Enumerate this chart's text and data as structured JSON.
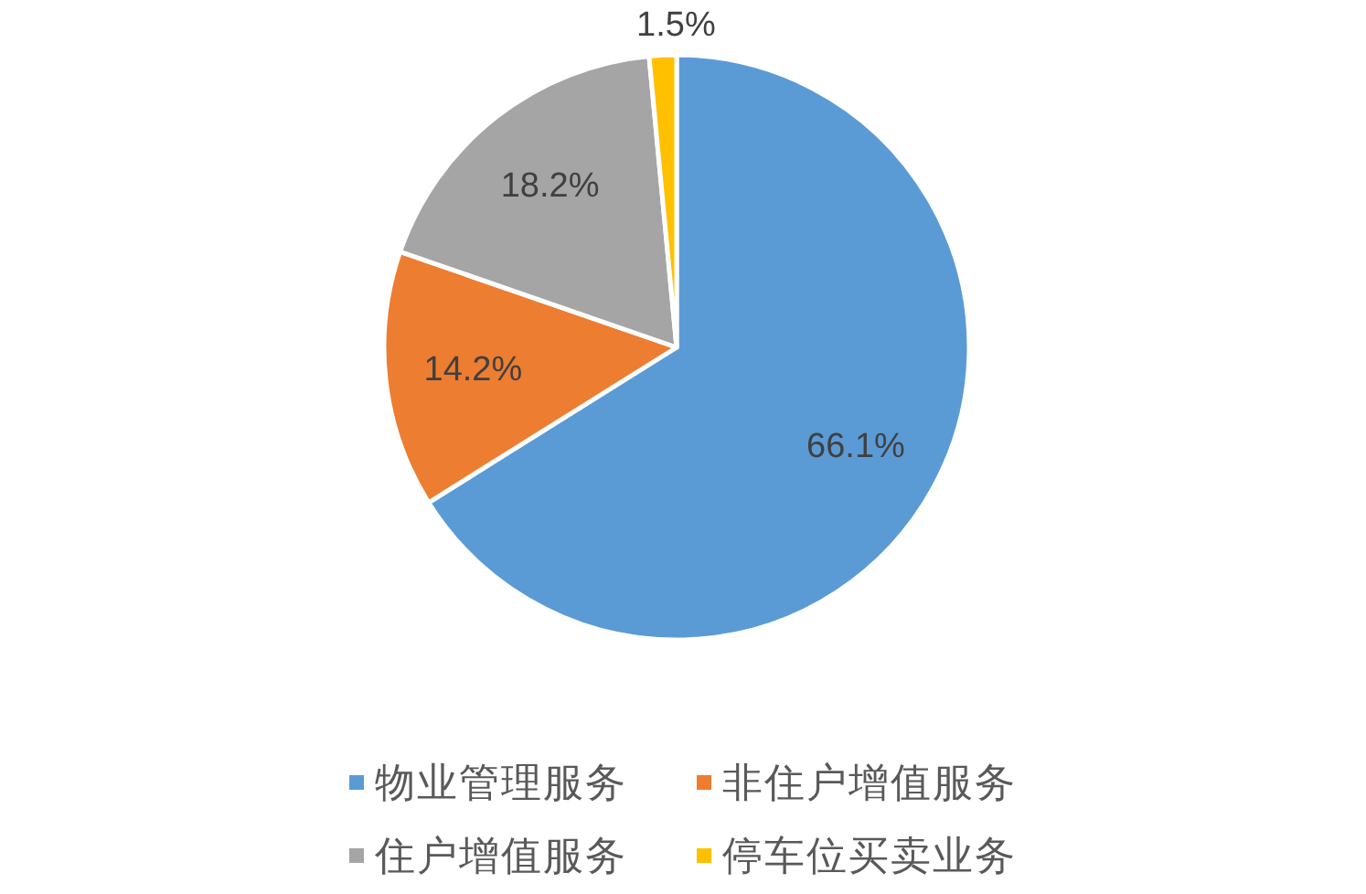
{
  "chart_data": {
    "type": "pie",
    "categories": [
      "物业管理服务",
      "非住户增值服务",
      "住户增值服务",
      "停车位买卖业务"
    ],
    "values": [
      66.1,
      14.2,
      18.2,
      1.5
    ],
    "colors": [
      "#5b9bd5",
      "#ed7d31",
      "#a5a5a5",
      "#ffc000"
    ],
    "value_labels": [
      "66.1%",
      "14.2%",
      "18.2%",
      "1.5%"
    ],
    "legend": "bottom"
  }
}
